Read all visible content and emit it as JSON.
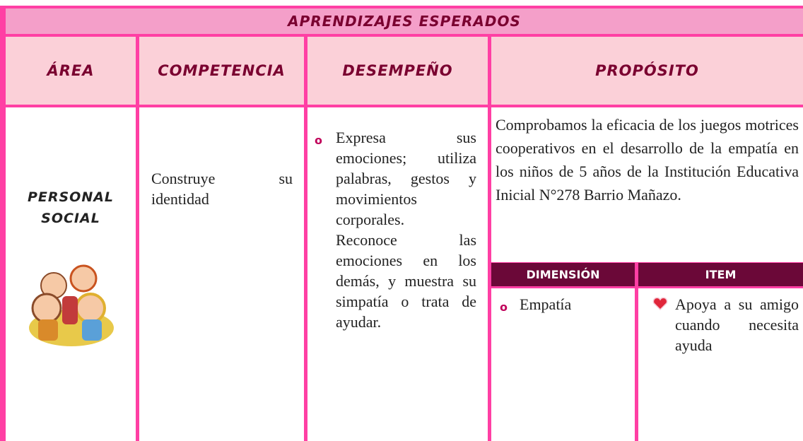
{
  "table": {
    "title": "APRENDIZAJES ESPERADOS",
    "headers": [
      "ÁREA",
      "COMPETENCIA",
      "DESEMPEÑO",
      "PROPÓSITO"
    ],
    "area": [
      "PERSONAL",
      "SOCIAL"
    ],
    "competencia": "Construye su identidad",
    "desempeno": [
      "Expresa sus emociones; utiliza palabras, gestos y movimientos corporales.",
      "Reconoce las emociones en los demás, y muestra su simpatía o trata de ayudar."
    ],
    "proposito": "Comprobamos la eficacia de los juegos motrices cooperativos en el desarrollo de la empatía en los niños de 5 años de la Institución Educativa Inicial N°278 Barrio Mañazo.",
    "sub_headers": [
      "DIMENSIÓN",
      "ITEM"
    ],
    "dimension": "Empatía",
    "item": "Apoya a su amigo cuando necesita ayuda"
  }
}
